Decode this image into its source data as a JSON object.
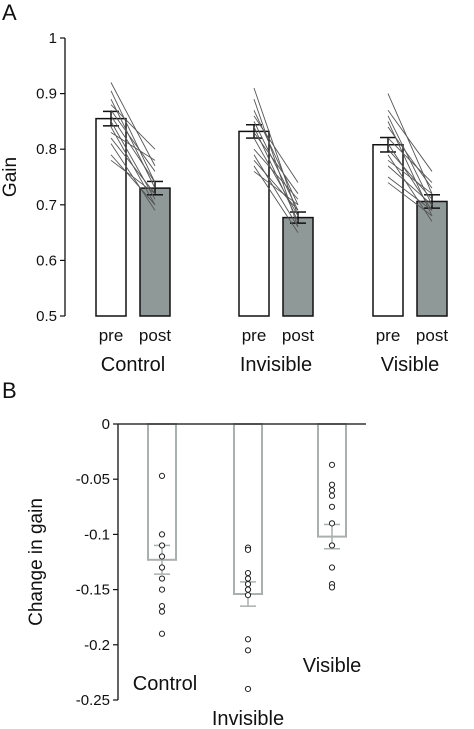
{
  "panels": [
    {
      "label": "A"
    },
    {
      "label": "B"
    }
  ],
  "chart_data": [
    {
      "type": "bar",
      "panel": "A",
      "ylabel": "Gain",
      "ylim": [
        0.5,
        1.0
      ],
      "yticks": [
        0.5,
        0.6,
        0.7,
        0.8,
        0.9,
        1
      ],
      "ytick_labels": [
        "0.5",
        "0.6",
        "0.7",
        "0.8",
        "0.9",
        "1"
      ],
      "groups": [
        {
          "name": "Control",
          "bars": [
            {
              "label": "pre",
              "value": 0.855,
              "err": 0.013,
              "fill": "#ffffff"
            },
            {
              "label": "post",
              "value": 0.73,
              "err": 0.012,
              "fill": "#8f9a98"
            }
          ],
          "lines": [
            [
              0.92,
              0.77
            ],
            [
              0.905,
              0.74
            ],
            [
              0.89,
              0.73
            ],
            [
              0.88,
              0.8
            ],
            [
              0.87,
              0.76
            ],
            [
              0.86,
              0.74
            ],
            [
              0.85,
              0.71
            ],
            [
              0.84,
              0.7
            ],
            [
              0.83,
              0.78
            ],
            [
              0.82,
              0.72
            ],
            [
              0.81,
              0.69
            ],
            [
              0.79,
              0.7
            ],
            [
              0.78,
              0.72
            ]
          ]
        },
        {
          "name": "Invisible",
          "bars": [
            {
              "label": "pre",
              "value": 0.832,
              "err": 0.012,
              "fill": "#ffffff"
            },
            {
              "label": "post",
              "value": 0.677,
              "err": 0.01,
              "fill": "#8f9a98"
            }
          ],
          "lines": [
            [
              0.91,
              0.68
            ],
            [
              0.89,
              0.66
            ],
            [
              0.87,
              0.7
            ],
            [
              0.86,
              0.74
            ],
            [
              0.85,
              0.69
            ],
            [
              0.84,
              0.67
            ],
            [
              0.83,
              0.72
            ],
            [
              0.82,
              0.68
            ],
            [
              0.8,
              0.71
            ],
            [
              0.79,
              0.66
            ],
            [
              0.78,
              0.69
            ],
            [
              0.77,
              0.65
            ],
            [
              0.76,
              0.7
            ]
          ]
        },
        {
          "name": "Visible",
          "bars": [
            {
              "label": "pre",
              "value": 0.808,
              "err": 0.013,
              "fill": "#ffffff"
            },
            {
              "label": "post",
              "value": 0.706,
              "err": 0.012,
              "fill": "#8f9a98"
            }
          ],
          "lines": [
            [
              0.9,
              0.72
            ],
            [
              0.87,
              0.76
            ],
            [
              0.86,
              0.7
            ],
            [
              0.85,
              0.68
            ],
            [
              0.84,
              0.73
            ],
            [
              0.82,
              0.74
            ],
            [
              0.81,
              0.69
            ],
            [
              0.8,
              0.71
            ],
            [
              0.79,
              0.67
            ],
            [
              0.78,
              0.72
            ],
            [
              0.77,
              0.7
            ],
            [
              0.75,
              0.69
            ],
            [
              0.74,
              0.68
            ]
          ]
        }
      ],
      "colors": {
        "pre": "#ffffff",
        "post": "#8f9a98",
        "edge": "#111111",
        "lines": "#555555"
      }
    },
    {
      "type": "bar",
      "panel": "B",
      "ylabel": "Change in gain",
      "ylim": [
        -0.25,
        0
      ],
      "yticks": [
        0,
        -0.05,
        -0.1,
        -0.15,
        -0.2,
        -0.25
      ],
      "ytick_labels": [
        "0",
        "-0.05",
        "-0.1",
        "-0.15",
        "-0.2",
        "-0.25"
      ],
      "categories": [
        "Control",
        "Invisible",
        "Visible"
      ],
      "values": [
        -0.123,
        -0.154,
        -0.102
      ],
      "err": [
        0.013,
        0.011,
        0.011
      ],
      "points": [
        [
          -0.047,
          -0.1,
          -0.11,
          -0.12,
          -0.13,
          -0.14,
          -0.15,
          -0.165,
          -0.17,
          -0.19
        ],
        [
          -0.112,
          -0.114,
          -0.135,
          -0.14,
          -0.145,
          -0.15,
          -0.155,
          -0.195,
          -0.205,
          -0.24
        ],
        [
          -0.037,
          -0.055,
          -0.06,
          -0.065,
          -0.075,
          -0.09,
          -0.11,
          -0.13,
          -0.145,
          -0.148
        ]
      ],
      "colors": {
        "bar_edge": "#a9b0ae",
        "bar_fill": "#ffffff",
        "points": "#222222",
        "zero_line": "#333333"
      }
    }
  ]
}
